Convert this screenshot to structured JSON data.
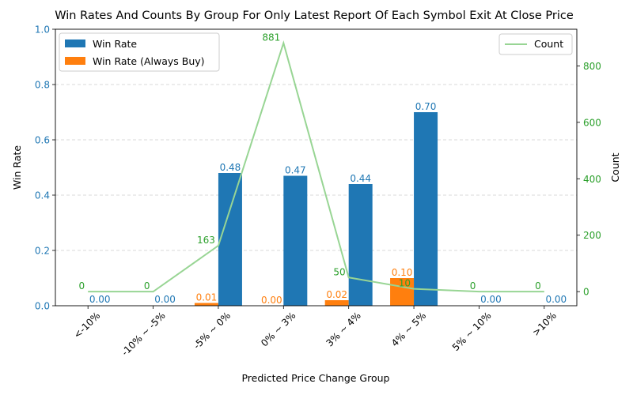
{
  "chart_data": {
    "type": "bar",
    "title": "Win Rates And Counts By Group For Only Latest Report Of Each Symbol Exit At Close Price",
    "xlabel": "Predicted Price Change Group",
    "ylabel": "Win Rate",
    "y2label": "Count",
    "categories": [
      "<-10%",
      "-10% ~ -5%",
      "-5% ~ 0%",
      "0% ~ 3%",
      "3% ~ 4%",
      "4% ~ 5%",
      "5% ~ 10%",
      ">10%"
    ],
    "ylim": [
      0,
      1.0
    ],
    "y_ticks": [
      "0.0",
      "0.2",
      "0.4",
      "0.6",
      "0.8",
      "1.0"
    ],
    "y2lim": [
      -50,
      930
    ],
    "y2_ticks": [
      "0",
      "200",
      "400",
      "600",
      "800"
    ],
    "grid": "horizontal dashed",
    "series": [
      {
        "name": "Win Rate",
        "color": "#1f77b4",
        "values": [
          0.0,
          0.0,
          0.48,
          0.47,
          0.44,
          0.7,
          0.0,
          0.0
        ],
        "labels": [
          "0.00",
          "0.00",
          "0.48",
          "0.47",
          "0.44",
          "0.70",
          "0.00",
          "0.00"
        ]
      },
      {
        "name": "Win Rate (Always Buy)",
        "color": "#ff7f0e",
        "values": [
          0.0,
          0.0,
          0.01,
          0.0,
          0.02,
          0.1,
          0.0,
          0.0
        ],
        "labels": [
          "",
          "",
          "0.01",
          "0.00",
          "0.02",
          "0.10",
          "",
          ""
        ]
      },
      {
        "name": "Count",
        "color": "#98d594",
        "label_color": "#2ca02c",
        "axis": "right",
        "values": [
          0,
          0,
          163,
          881,
          50,
          10,
          0,
          0
        ],
        "labels": [
          "0",
          "0",
          "163",
          "881",
          "50",
          "10",
          "0",
          "0"
        ]
      }
    ],
    "legend_left": "upper-left",
    "legend_right": "upper-right"
  }
}
